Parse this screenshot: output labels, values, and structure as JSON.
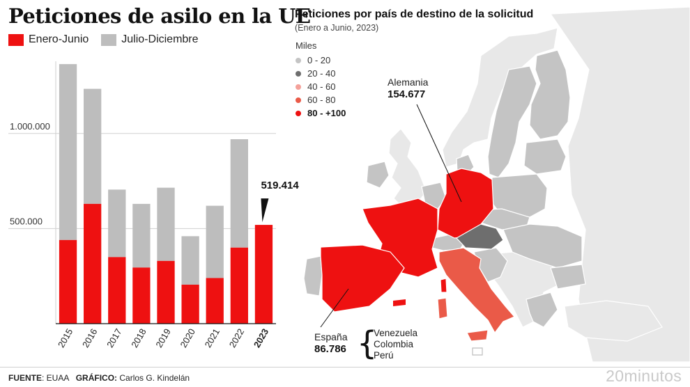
{
  "left_chart": {
    "title": "Peticiones de asilo en la UE",
    "legend": [
      {
        "label": "Enero-Junio",
        "color": "#ee1111"
      },
      {
        "label": "Julio-Diciembre",
        "color": "#bdbdbd"
      }
    ],
    "highlight_value_label": "519.414"
  },
  "chart_data": {
    "type": "bar",
    "stacked": true,
    "title": "Peticiones de asilo en la UE",
    "categories": [
      "2015",
      "2016",
      "2017",
      "2018",
      "2019",
      "2020",
      "2021",
      "2022",
      "2023"
    ],
    "series": [
      {
        "name": "Enero-Junio",
        "color": "#ee1111",
        "values": [
          440000,
          630000,
          350000,
          295000,
          330000,
          205000,
          240000,
          400000,
          519414
        ]
      },
      {
        "name": "Julio-Diciembre",
        "color": "#bdbdbd",
        "values": [
          925000,
          605000,
          355000,
          335000,
          385000,
          255000,
          380000,
          570000,
          0
        ]
      }
    ],
    "yticks": [
      500000,
      1000000
    ],
    "ytick_labels": [
      "500.000",
      "1.000.000"
    ],
    "ylim": [
      0,
      1380000
    ],
    "grid": true,
    "bold_category": "2023"
  },
  "map": {
    "title": "Peticiones por país de destino de la solicitud",
    "subtitle": "(Enero a Junio, 2023)",
    "legend_title": "Miles",
    "legend": [
      {
        "label": "0 - 20",
        "color": "#c4c4c4"
      },
      {
        "label": "20 - 40",
        "color": "#6e6e6e"
      },
      {
        "label": "40 - 60",
        "color": "#f4a19a"
      },
      {
        "label": "60 - 80",
        "color": "#ea5a48"
      },
      {
        "label": "80 -  +100",
        "color": "#ee1111"
      }
    ],
    "colors": {
      "sea": "#ffffff",
      "non_eu": "#e8e8e8",
      "low": "#c4c4c4",
      "austria": "#6e6e6e",
      "italy": "#ea5a48",
      "top": "#ee1111"
    },
    "germany": {
      "name": "Alemania",
      "value": "154.677"
    },
    "spain": {
      "name": "España",
      "value": "86.786",
      "origins": [
        "Venezuela",
        "Colombia",
        "Perú"
      ]
    }
  },
  "footer": {
    "source_label": "FUENTE",
    "source": ": EUAA",
    "graphic_label": "GRÁFICO:",
    "author": " Carlos G. Kindelán",
    "brand": "20minutos"
  }
}
